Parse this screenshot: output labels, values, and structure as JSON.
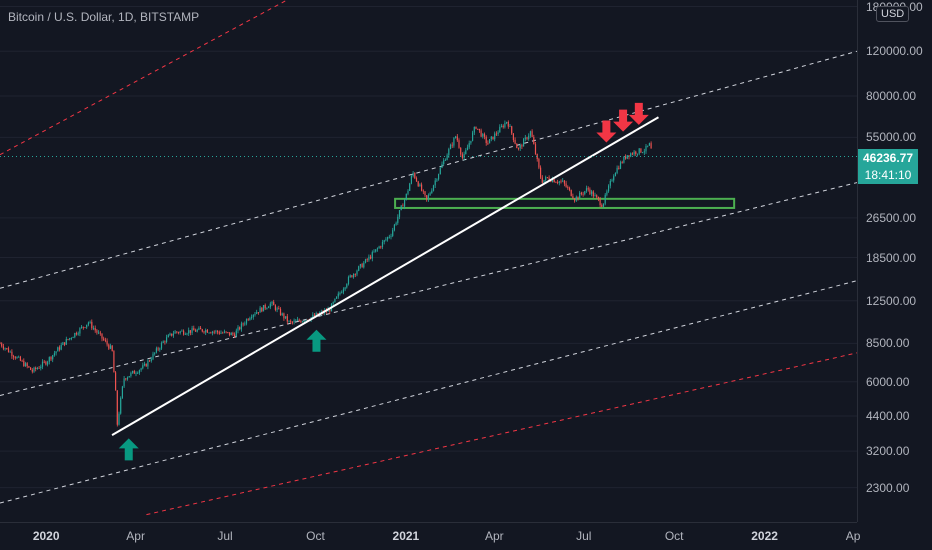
{
  "symbol_title": "Bitcoin / U.S. Dollar, 1D, BITSTAMP",
  "currency": "USD",
  "current_price": "46236.77",
  "countdown": "18:41:10",
  "price_axis": [
    "180000.00",
    "120000.00",
    "80000.00",
    "55000.00",
    "26500.00",
    "18500.00",
    "12500.00",
    "8500.00",
    "6000.00",
    "4400.00",
    "3200.00",
    "2300.00"
  ],
  "time_axis": [
    {
      "label": "2020",
      "bold": true
    },
    {
      "label": "Apr",
      "bold": false
    },
    {
      "label": "Jul",
      "bold": false
    },
    {
      "label": "Oct",
      "bold": false
    },
    {
      "label": "2021",
      "bold": true
    },
    {
      "label": "Apr",
      "bold": false
    },
    {
      "label": "Jul",
      "bold": false
    },
    {
      "label": "Oct",
      "bold": false
    },
    {
      "label": "2022",
      "bold": true
    },
    {
      "label": "Ap",
      "bold": false
    }
  ],
  "colors": {
    "background": "#131722",
    "up_candle": "#26a69a",
    "down_candle": "#ef5350",
    "trendline": "#ffffff",
    "channel_inner": "#d1d4dc",
    "channel_outer": "#f23645",
    "support_zone": "#4caf50",
    "arrow_up": "#089981",
    "arrow_down": "#f23645"
  },
  "chart_data": {
    "type": "candlestick",
    "symbol": "Bitcoin / U.S. Dollar",
    "interval": "1D",
    "exchange": "BITSTAMP",
    "scale": "log",
    "x_range": [
      "2019-11-15",
      "2022-04-05"
    ],
    "y_range": [
      1800,
      190000
    ],
    "current_price": 46236.77,
    "price_path": [
      [
        "2019-11-15",
        8500
      ],
      [
        "2019-12-18",
        6600
      ],
      [
        "2020-01-01",
        7200
      ],
      [
        "2020-01-20",
        8600
      ],
      [
        "2020-02-13",
        10300
      ],
      [
        "2020-03-08",
        8000
      ],
      [
        "2020-03-12",
        5200
      ],
      [
        "2020-03-13",
        4000
      ],
      [
        "2020-03-20",
        6200
      ],
      [
        "2020-04-10",
        6900
      ],
      [
        "2020-04-30",
        8700
      ],
      [
        "2020-05-10",
        9400
      ],
      [
        "2020-06-10",
        9600
      ],
      [
        "2020-07-10",
        9200
      ],
      [
        "2020-07-27",
        11000
      ],
      [
        "2020-08-17",
        12200
      ],
      [
        "2020-09-05",
        10200
      ],
      [
        "2020-09-25",
        10700
      ],
      [
        "2020-10-15",
        11500
      ],
      [
        "2020-11-05",
        15500
      ],
      [
        "2020-11-25",
        18500
      ],
      [
        "2020-12-17",
        23000
      ],
      [
        "2021-01-02",
        33000
      ],
      [
        "2021-01-08",
        40000
      ],
      [
        "2021-01-22",
        31000
      ],
      [
        "2021-02-08",
        44000
      ],
      [
        "2021-02-21",
        56000
      ],
      [
        "2021-02-28",
        45000
      ],
      [
        "2021-03-13",
        61000
      ],
      [
        "2021-03-25",
        52000
      ],
      [
        "2021-04-14",
        64000
      ],
      [
        "2021-04-25",
        49000
      ],
      [
        "2021-05-08",
        58000
      ],
      [
        "2021-05-19",
        37000
      ],
      [
        "2021-05-25",
        38000
      ],
      [
        "2021-06-10",
        36500
      ],
      [
        "2021-06-22",
        31500
      ],
      [
        "2021-07-05",
        34500
      ],
      [
        "2021-07-20",
        29800
      ],
      [
        "2021-08-01",
        40000
      ],
      [
        "2021-08-14",
        47000
      ],
      [
        "2021-08-25",
        48500
      ],
      [
        "2021-09-01",
        49000
      ],
      [
        "2021-09-07",
        52000
      ],
      [
        "2021-09-08",
        46300
      ]
    ],
    "drawings": {
      "trendline": [
        [
          "2020-03-08",
          3700
        ],
        [
          "2021-09-15",
          66000
        ]
      ],
      "support_zone": {
        "from": "2020-12-21",
        "to": "2021-12-01",
        "low": 29000,
        "high": 31500
      },
      "channel_inner_upper": [
        [
          "2019-11-15",
          14000
        ],
        [
          "2022-04-05",
          120000
        ]
      ],
      "channel_inner_mid": [
        [
          "2019-11-15",
          5300
        ],
        [
          "2022-04-05",
          36500
        ]
      ],
      "channel_inner_lower": [
        [
          "2019-11-15",
          2000
        ],
        [
          "2022-04-05",
          15000
        ]
      ],
      "channel_outer_upper": [
        [
          "2019-11-15",
          47000
        ],
        [
          "2020-09-01",
          190000
        ]
      ],
      "channel_outer_lower": [
        [
          "2020-04-12",
          1800
        ],
        [
          "2022-04-05",
          7800
        ]
      ],
      "arrows_up": [
        [
          "2020-03-25",
          3250
        ],
        [
          "2020-10-02",
          8700
        ]
      ],
      "arrows_down": [
        [
          "2021-07-24",
          58000
        ],
        [
          "2021-08-10",
          64000
        ],
        [
          "2021-08-26",
          68000
        ]
      ]
    }
  }
}
